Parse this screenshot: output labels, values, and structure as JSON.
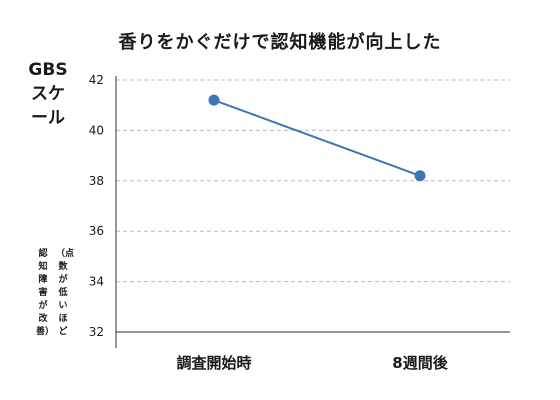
{
  "chart_data": {
    "type": "line",
    "title": "香りをかぐだけで認知機能が向上した",
    "ylabel": "GBSスケール",
    "ylabel_note_line1": "（点数が低いほど",
    "ylabel_note_line2": "認知障害が改善）",
    "categories": [
      "調査開始時",
      "8週間後"
    ],
    "series": [
      {
        "values": [
          41.2,
          38.2
        ],
        "color": "#3f74b5"
      }
    ],
    "ylim": [
      32,
      42
    ],
    "yticks": [
      32,
      34,
      36,
      38,
      40,
      42
    ],
    "grid": true,
    "grid_style": "dashed",
    "axis_color": "#555555",
    "grid_color": "#bbbbbb"
  }
}
